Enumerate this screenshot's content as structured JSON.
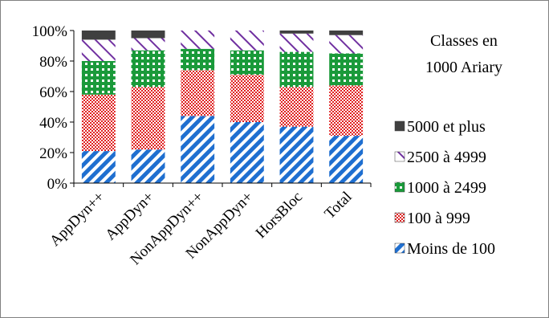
{
  "chart_data": {
    "type": "bar",
    "stacked": true,
    "percent": true,
    "categories": [
      "AppDyn++",
      "AppDyn+",
      "NonAppDyn++",
      "NonAppDyn+",
      "HorsBloc",
      "Total"
    ],
    "ylim": [
      0,
      100
    ],
    "yticks": [
      "0%",
      "20%",
      "40%",
      "60%",
      "80%",
      "100%"
    ],
    "legend_title": "Classes en 1000 Ariary",
    "legend_title_lines": [
      "Classes en",
      "1000 Ariary"
    ],
    "legend_position": "right",
    "series": [
      {
        "name": "Moins de 100",
        "values": [
          21,
          22,
          44,
          40,
          37,
          31
        ],
        "color": "#1f6fd0",
        "pattern": "diagonal-stripes"
      },
      {
        "name": "100 à 999",
        "values": [
          37,
          41,
          30,
          31,
          26,
          33
        ],
        "color": "#e02020",
        "pattern": "checker"
      },
      {
        "name": "1000 à 2499",
        "values": [
          22,
          24,
          14,
          16,
          23,
          21
        ],
        "color": "#1a9a3a",
        "pattern": "dots"
      },
      {
        "name": "2500 à 4999",
        "values": [
          14,
          8,
          12,
          13,
          12,
          12
        ],
        "color": "#7030a0",
        "pattern": "wide-diagonal"
      },
      {
        "name": "5000 et plus",
        "values": [
          6,
          5,
          0,
          0,
          2,
          3
        ],
        "color": "#404040",
        "pattern": "solid"
      }
    ],
    "legend_order": [
      4,
      3,
      2,
      1,
      0
    ]
  }
}
